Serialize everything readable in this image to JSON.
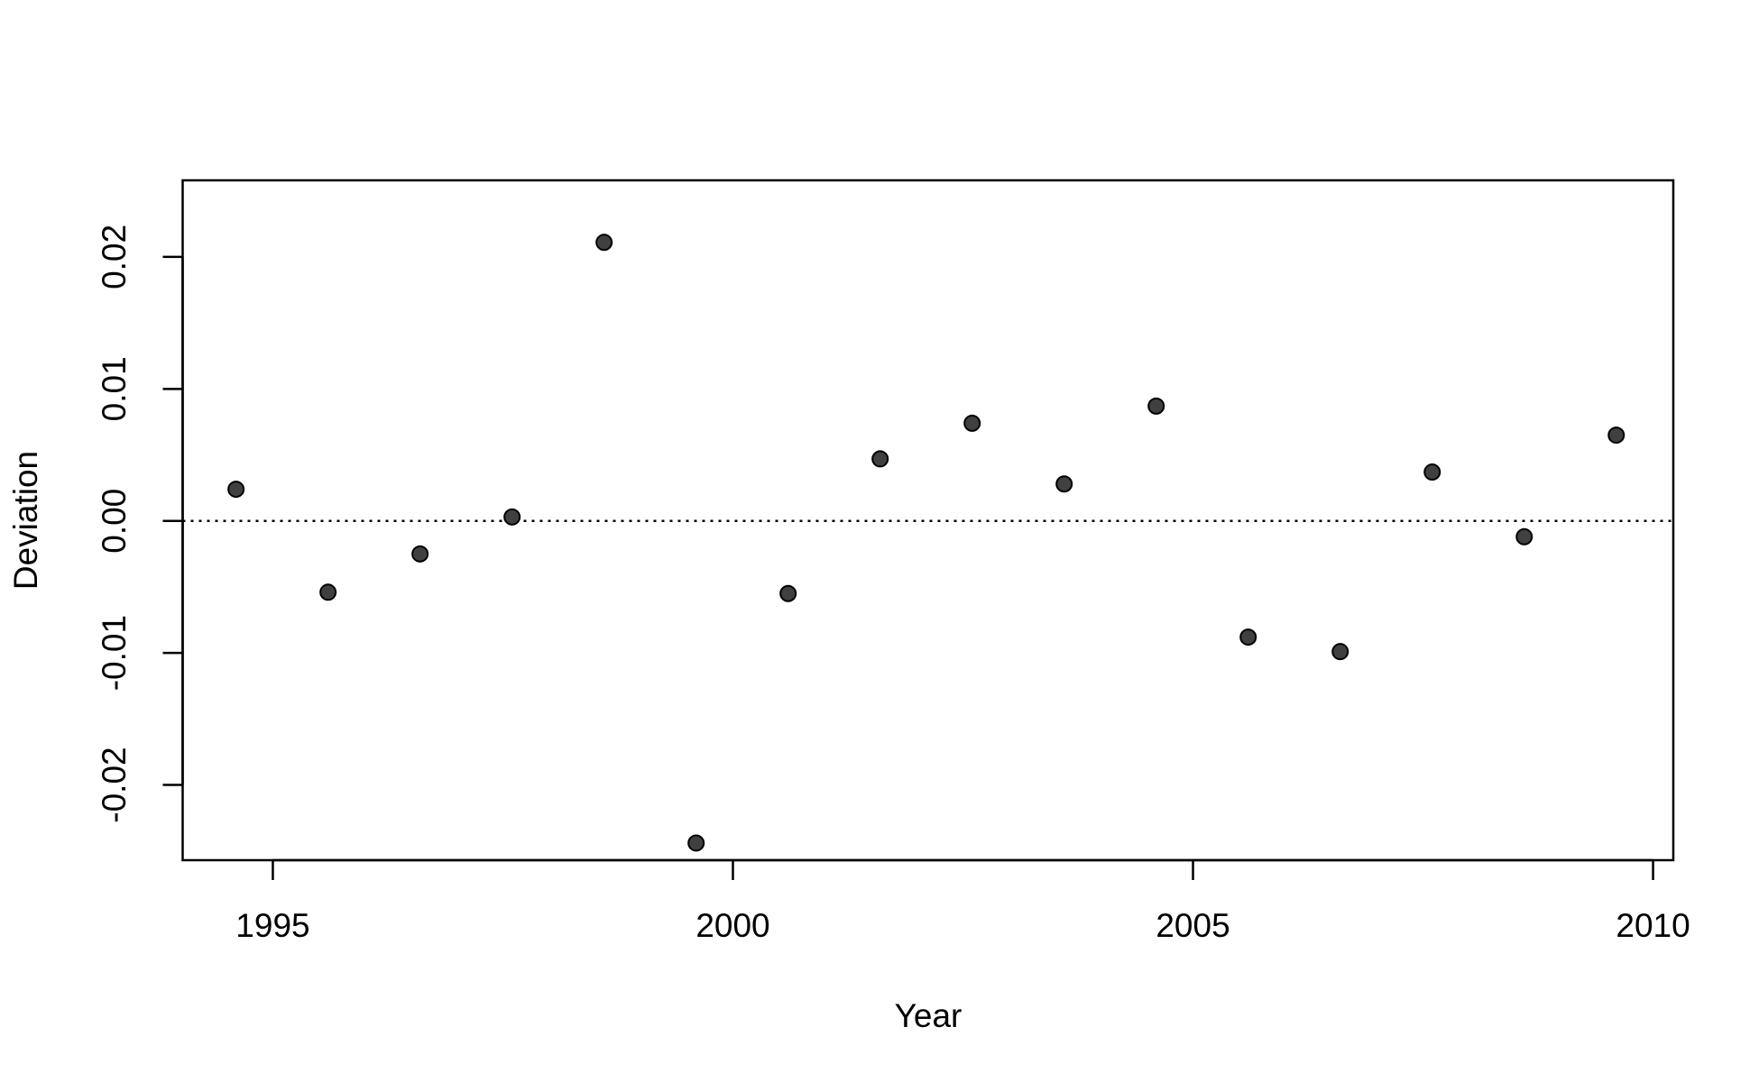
{
  "chart_data": {
    "type": "scatter",
    "x_label": "Year",
    "y_label": "Deviation",
    "x": [
      1994.6,
      1995.6,
      1996.6,
      1997.6,
      1998.6,
      1999.6,
      2000.6,
      2001.6,
      2002.6,
      2003.6,
      2004.6,
      2005.6,
      2006.6,
      2007.6,
      2008.6,
      2009.6
    ],
    "values": [
      0.0024,
      -0.0054,
      -0.0025,
      0.0003,
      0.0211,
      -0.0244,
      -0.0055,
      0.0047,
      0.0074,
      0.0028,
      0.0087,
      -0.0088,
      -0.0099,
      0.0037,
      -0.0012,
      0.0065
    ],
    "color": "#404040",
    "xlim": [
      1994.02,
      2010.22
    ],
    "xticks": [
      1995,
      2000,
      2005,
      2010
    ],
    "ylim": [
      -0.0257,
      0.0258
    ],
    "yticks": [
      -0.02,
      -0.01,
      {
        "value": 0,
        "label": "0.00"
      },
      0.01,
      0.02
    ],
    "hline": 0
  }
}
